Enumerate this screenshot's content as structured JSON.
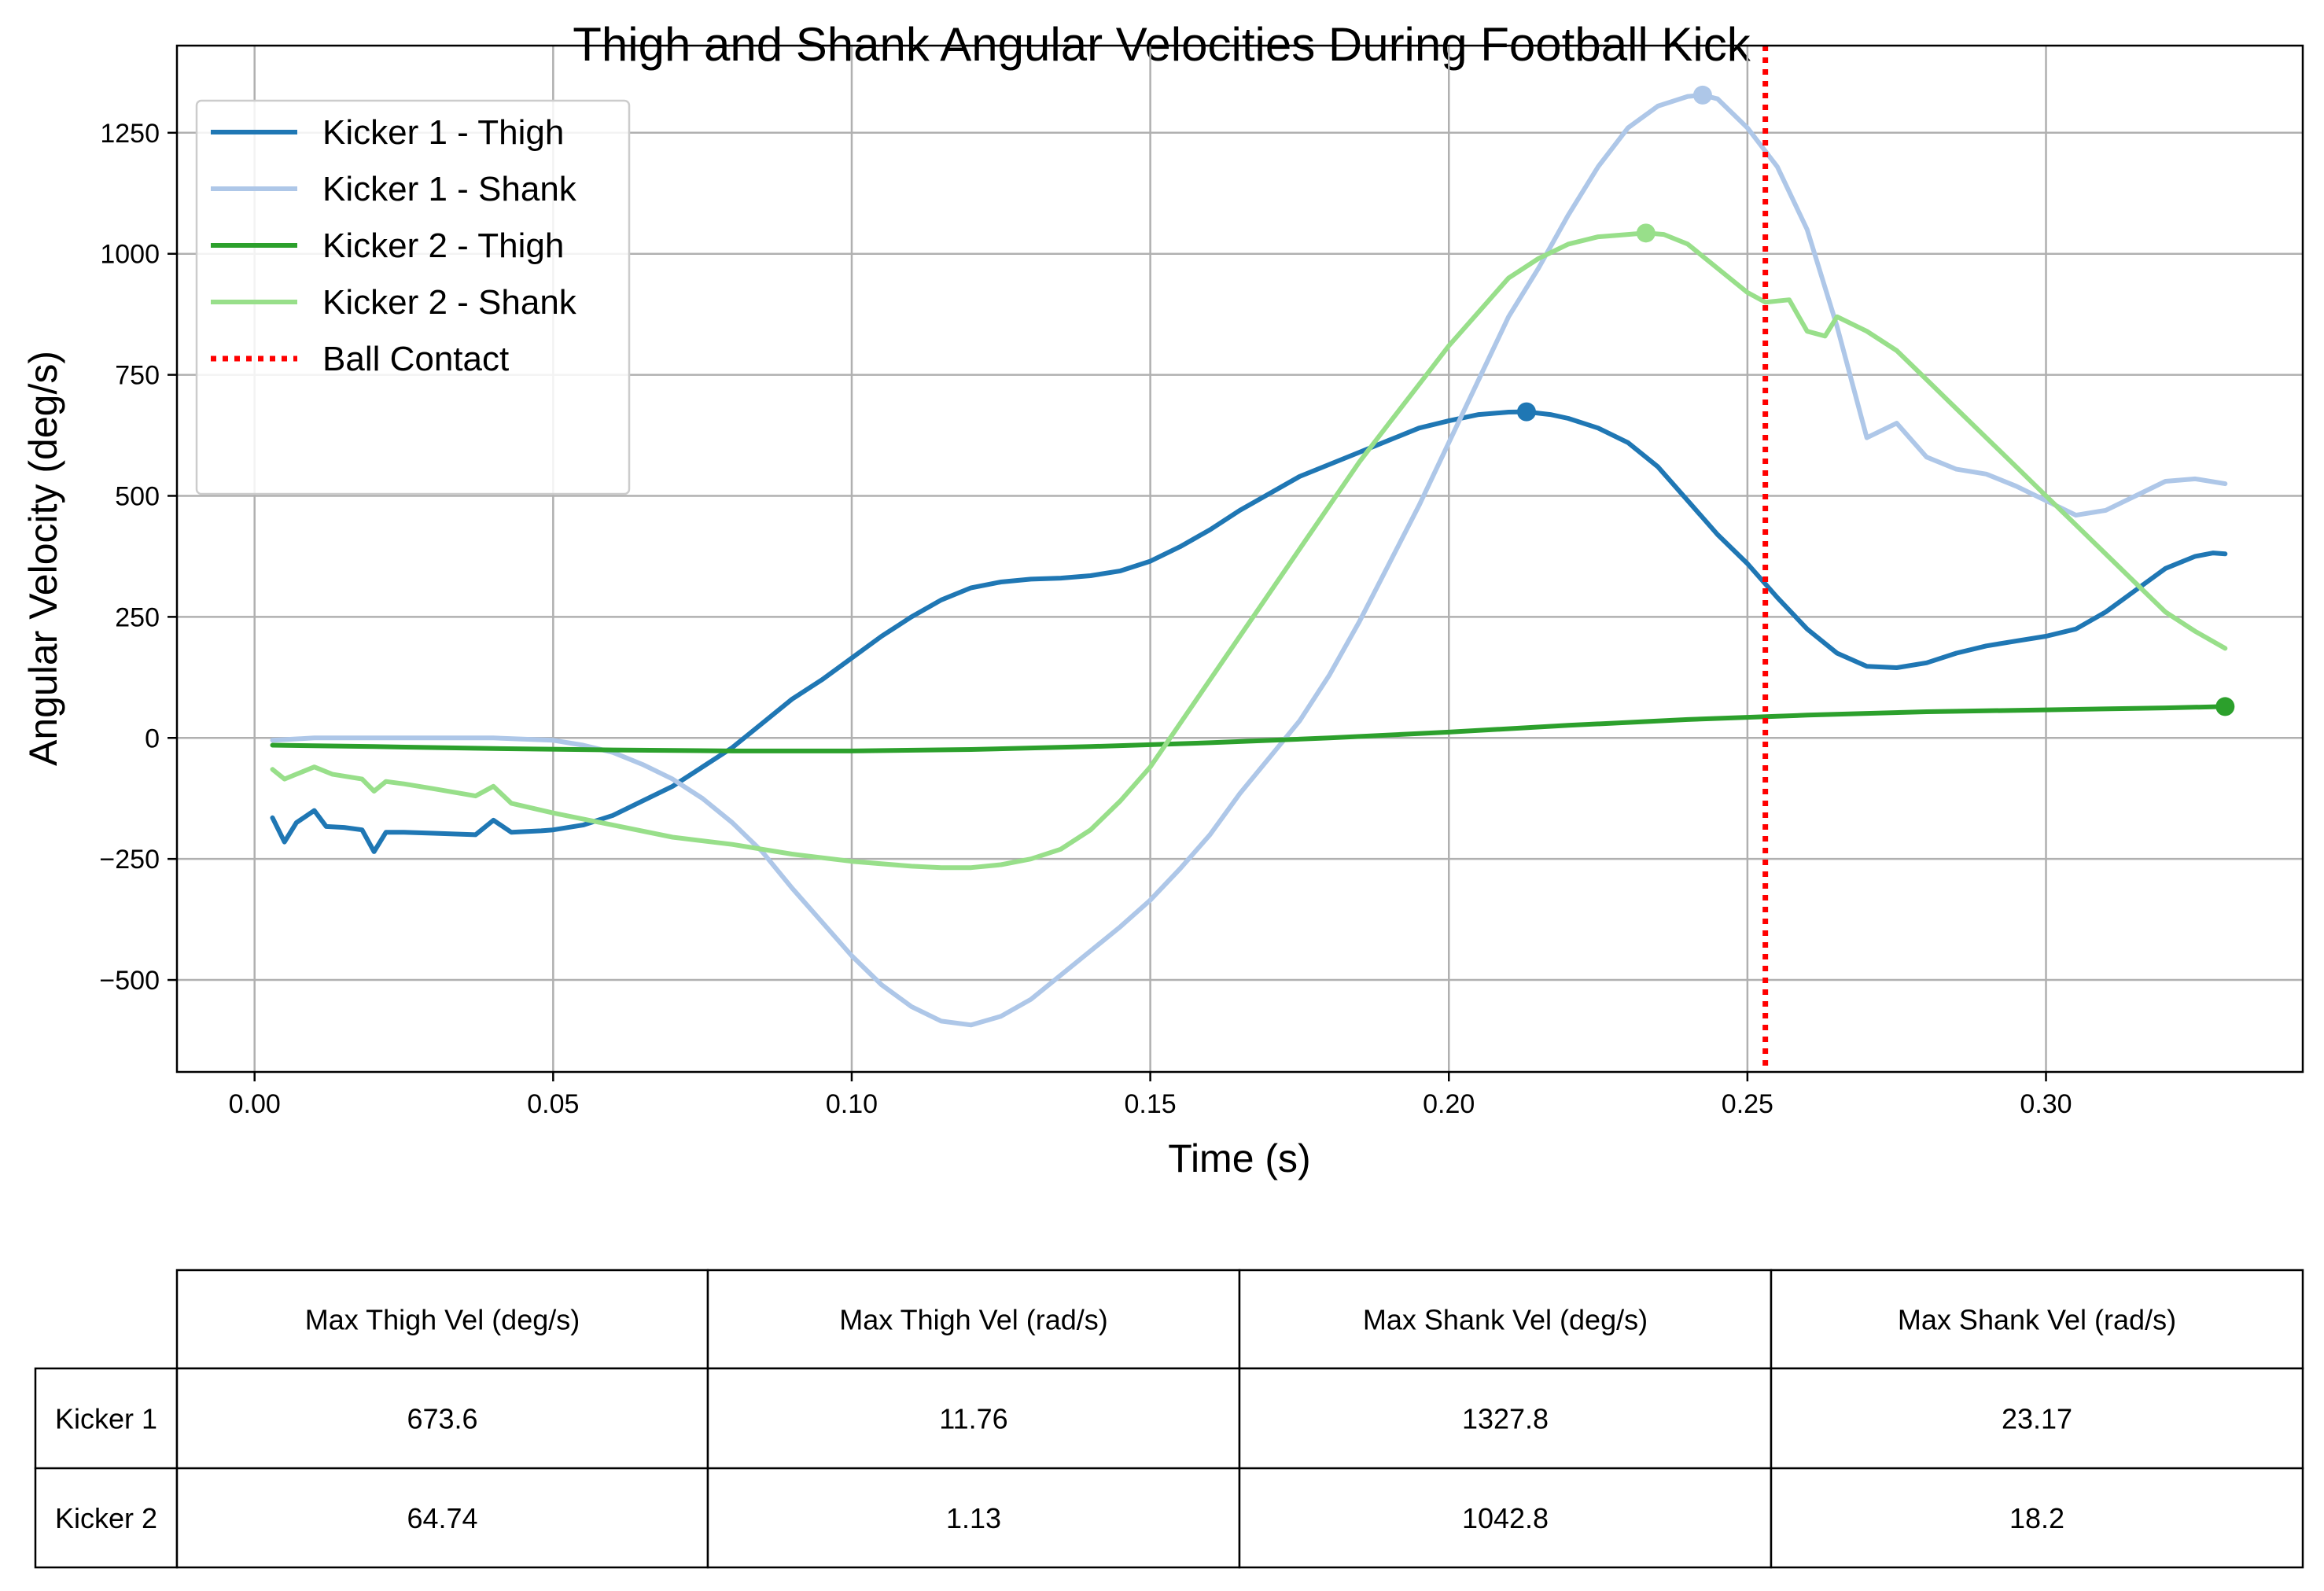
{
  "chart_data": {
    "type": "line",
    "title": "Thigh and Shank Angular Velocities During Football Kick",
    "xlabel": "Time (s)",
    "ylabel": "Angular Velocity (deg/s)",
    "xlim": [
      -0.013,
      0.343
    ],
    "ylim": [
      -690,
      1430
    ],
    "xticks": [
      0.0,
      0.05,
      0.1,
      0.15,
      0.2,
      0.25,
      0.3
    ],
    "xtick_labels": [
      "0.00",
      "0.05",
      "0.10",
      "0.15",
      "0.20",
      "0.25",
      "0.30"
    ],
    "yticks": [
      -500,
      -250,
      0,
      250,
      500,
      750,
      1000,
      1250
    ],
    "ytick_labels": [
      "−500",
      "−250",
      "0",
      "250",
      "500",
      "750",
      "1000",
      "1250"
    ],
    "grid": true,
    "legend_position": "top-left",
    "series": [
      {
        "name": "Kicker 1 - Thigh",
        "color": "#1f77b4",
        "style": "solid",
        "x": [
          0.003,
          0.005,
          0.007,
          0.01,
          0.012,
          0.015,
          0.018,
          0.02,
          0.022,
          0.025,
          0.03,
          0.037,
          0.04,
          0.043,
          0.048,
          0.05,
          0.055,
          0.06,
          0.065,
          0.07,
          0.075,
          0.08,
          0.085,
          0.09,
          0.095,
          0.1,
          0.105,
          0.11,
          0.115,
          0.12,
          0.125,
          0.13,
          0.135,
          0.14,
          0.145,
          0.15,
          0.155,
          0.16,
          0.165,
          0.17,
          0.175,
          0.18,
          0.185,
          0.19,
          0.195,
          0.2,
          0.205,
          0.21,
          0.213,
          0.217,
          0.22,
          0.225,
          0.23,
          0.235,
          0.24,
          0.245,
          0.25,
          0.255,
          0.26,
          0.265,
          0.27,
          0.275,
          0.28,
          0.285,
          0.29,
          0.295,
          0.3,
          0.305,
          0.31,
          0.315,
          0.32,
          0.325,
          0.328,
          0.33
        ],
        "y": [
          -165,
          -215,
          -175,
          -150,
          -183,
          -185,
          -190,
          -235,
          -195,
          -195,
          -197,
          -200,
          -170,
          -195,
          -192,
          -190,
          -180,
          -160,
          -130,
          -100,
          -60,
          -20,
          30,
          80,
          120,
          165,
          210,
          250,
          285,
          310,
          322,
          328,
          330,
          335,
          345,
          365,
          395,
          430,
          470,
          505,
          540,
          565,
          590,
          615,
          640,
          655,
          668,
          673,
          673.6,
          668,
          660,
          640,
          610,
          560,
          490,
          420,
          360,
          290,
          225,
          175,
          148,
          145,
          155,
          175,
          190,
          200,
          210,
          225,
          260,
          305,
          350,
          375,
          382,
          380
        ]
      },
      {
        "name": "Kicker 1 - Shank",
        "color": "#aec7e8",
        "style": "solid",
        "x": [
          0.003,
          0.01,
          0.02,
          0.03,
          0.04,
          0.05,
          0.055,
          0.06,
          0.065,
          0.07,
          0.075,
          0.08,
          0.085,
          0.09,
          0.095,
          0.1,
          0.105,
          0.11,
          0.115,
          0.12,
          0.125,
          0.13,
          0.135,
          0.14,
          0.145,
          0.15,
          0.155,
          0.16,
          0.165,
          0.17,
          0.175,
          0.18,
          0.185,
          0.19,
          0.195,
          0.2,
          0.205,
          0.21,
          0.215,
          0.22,
          0.225,
          0.23,
          0.235,
          0.24,
          0.2425,
          0.245,
          0.25,
          0.255,
          0.26,
          0.265,
          0.27,
          0.275,
          0.28,
          0.285,
          0.29,
          0.295,
          0.3,
          0.305,
          0.31,
          0.315,
          0.32,
          0.325,
          0.33
        ],
        "y": [
          -5,
          0,
          0,
          0,
          0,
          -5,
          -15,
          -30,
          -55,
          -85,
          -125,
          -175,
          -235,
          -310,
          -380,
          -450,
          -510,
          -555,
          -585,
          -593,
          -575,
          -540,
          -490,
          -440,
          -390,
          -335,
          -270,
          -200,
          -115,
          -40,
          35,
          130,
          240,
          360,
          480,
          610,
          740,
          870,
          970,
          1080,
          1180,
          1260,
          1305,
          1325,
          1327.8,
          1320,
          1260,
          1180,
          1050,
          850,
          620,
          650,
          580,
          555,
          545,
          520,
          490,
          460,
          470,
          500,
          530,
          535,
          525
        ]
      },
      {
        "name": "Kicker 2 - Thigh",
        "color": "#2ca02c",
        "style": "solid",
        "x": [
          0.003,
          0.02,
          0.04,
          0.06,
          0.08,
          0.1,
          0.12,
          0.14,
          0.16,
          0.18,
          0.2,
          0.22,
          0.24,
          0.26,
          0.28,
          0.3,
          0.32,
          0.33
        ],
        "y": [
          -15,
          -18,
          -22,
          -25,
          -27,
          -27,
          -24,
          -18,
          -10,
          0,
          12,
          26,
          38,
          47,
          54,
          58,
          62,
          64.74
        ]
      },
      {
        "name": "Kicker 2 - Shank",
        "color": "#98df8a",
        "style": "solid",
        "x": [
          0.003,
          0.005,
          0.007,
          0.01,
          0.013,
          0.018,
          0.02,
          0.022,
          0.025,
          0.03,
          0.037,
          0.04,
          0.043,
          0.05,
          0.06,
          0.07,
          0.08,
          0.09,
          0.1,
          0.11,
          0.115,
          0.12,
          0.125,
          0.13,
          0.135,
          0.14,
          0.145,
          0.15,
          0.155,
          0.16,
          0.165,
          0.17,
          0.175,
          0.18,
          0.185,
          0.19,
          0.195,
          0.2,
          0.205,
          0.21,
          0.215,
          0.22,
          0.225,
          0.23,
          0.233,
          0.236,
          0.24,
          0.245,
          0.25,
          0.253,
          0.257,
          0.26,
          0.263,
          0.265,
          0.27,
          0.275,
          0.28,
          0.285,
          0.29,
          0.295,
          0.3,
          0.305,
          0.31,
          0.315,
          0.32,
          0.325,
          0.33
        ],
        "y": [
          -65,
          -85,
          -75,
          -60,
          -75,
          -85,
          -110,
          -90,
          -95,
          -105,
          -120,
          -100,
          -135,
          -155,
          -180,
          -205,
          -220,
          -240,
          -255,
          -265,
          -268,
          -268,
          -262,
          -250,
          -230,
          -190,
          -130,
          -60,
          30,
          120,
          210,
          300,
          390,
          480,
          570,
          650,
          730,
          810,
          880,
          950,
          990,
          1020,
          1035,
          1040,
          1042.8,
          1040,
          1020,
          970,
          920,
          900,
          905,
          840,
          830,
          870,
          840,
          800,
          740,
          680,
          620,
          560,
          500,
          440,
          380,
          320,
          260,
          220,
          185
        ]
      },
      {
        "name": "Ball Contact",
        "color": "#ff0000",
        "style": "dotted",
        "type": "vline",
        "x_value": 0.253
      }
    ],
    "peak_markers": [
      {
        "series": "Kicker 1 - Thigh",
        "x": 0.213,
        "y": 673.6,
        "color": "#1f77b4"
      },
      {
        "series": "Kicker 1 - Shank",
        "x": 0.2425,
        "y": 1327.8,
        "color": "#aec7e8"
      },
      {
        "series": "Kicker 2 - Thigh",
        "x": 0.33,
        "y": 64.74,
        "color": "#2ca02c"
      },
      {
        "series": "Kicker 2 - Shank",
        "x": 0.233,
        "y": 1042.8,
        "color": "#98df8a"
      }
    ]
  },
  "table": {
    "columns": [
      "Max Thigh Vel (deg/s)",
      "Max Thigh Vel (rad/s)",
      "Max Shank Vel (deg/s)",
      "Max Shank Vel (rad/s)"
    ],
    "rows": [
      {
        "label": "Kicker 1",
        "values": [
          "673.6",
          "11.76",
          "1327.8",
          "23.17"
        ]
      },
      {
        "label": "Kicker 2",
        "values": [
          "64.74",
          "1.13",
          "1042.8",
          "18.2"
        ]
      }
    ]
  }
}
